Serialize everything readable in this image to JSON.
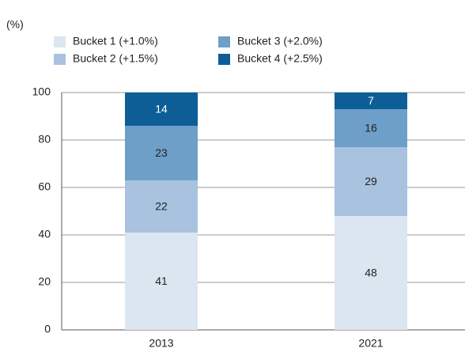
{
  "chart_data": {
    "type": "stacked_bar",
    "y_label": "(%)",
    "categories": [
      "2013",
      "2021"
    ],
    "series": [
      {
        "name": "Bucket 1 (+1.0%)",
        "color": "#dce6f1",
        "values": [
          41,
          48
        ]
      },
      {
        "name": "Bucket 2 (+1.5%)",
        "color": "#a8c2df",
        "values": [
          22,
          29
        ]
      },
      {
        "name": "Bucket 3 (+2.0%)",
        "color": "#6d9fc9",
        "values": [
          23,
          16
        ]
      },
      {
        "name": "Bucket 4 (+2.5%)",
        "color": "#0d5e97",
        "values": [
          14,
          7
        ]
      }
    ],
    "ylim": [
      0,
      100
    ],
    "yticks": [
      0,
      20,
      40,
      60,
      80,
      100
    ],
    "grid": true
  }
}
